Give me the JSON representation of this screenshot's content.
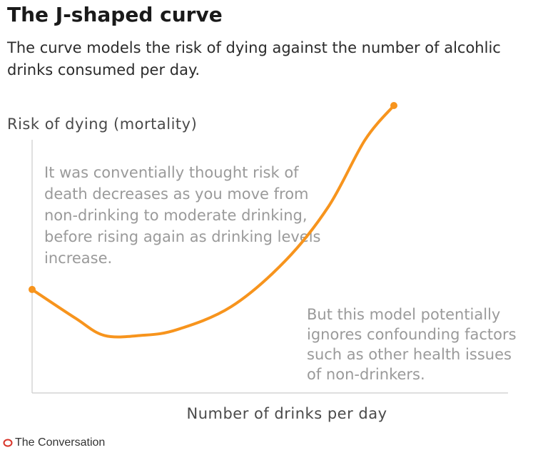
{
  "title": "The J-shaped curve",
  "subtitle": "The curve models the risk of dying against the number of alcohlic drinks consumed per day.",
  "chart_data": {
    "type": "line",
    "xlabel": "Number of drinks per day",
    "ylabel": "Risk of dying (mortality)",
    "series": [
      {
        "color": "#F7941D",
        "points": [
          [
            0,
            0.36
          ],
          [
            0.12,
            0.26
          ],
          [
            0.2,
            0.2
          ],
          [
            0.3,
            0.2
          ],
          [
            0.4,
            0.22
          ],
          [
            0.55,
            0.3
          ],
          [
            0.7,
            0.46
          ],
          [
            0.82,
            0.65
          ],
          [
            0.92,
            0.88
          ],
          [
            1.0,
            1.0
          ]
        ]
      }
    ],
    "annotations": [
      "It was conventially thought risk of death decreases as you move from non-drinking to moderate drinking, before rising again as drinking levels increase.",
      "But this model potentially ignores confounding factors such as other health issues of non-drinkers."
    ],
    "grid": false,
    "legend": "none"
  },
  "footer": {
    "source": "The Conversation",
    "logo_color": "#D8352A"
  }
}
